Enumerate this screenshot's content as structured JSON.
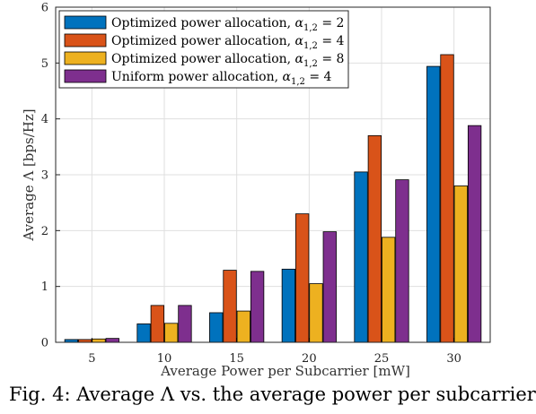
{
  "chart_data": {
    "type": "bar",
    "categories": [
      "5",
      "10",
      "15",
      "20",
      "25",
      "30"
    ],
    "series": [
      {
        "name": "Optimized power allocation, α1,2 = 2",
        "color": "#0072bd",
        "values": [
          0.05,
          0.33,
          0.53,
          1.31,
          3.05,
          4.94
        ]
      },
      {
        "name": "Optimized power allocation, α1,2 = 4",
        "color": "#d95319",
        "values": [
          0.05,
          0.66,
          1.29,
          2.3,
          3.7,
          5.15
        ]
      },
      {
        "name": "Optimized power allocation, α1,2 = 8",
        "color": "#edb120",
        "values": [
          0.06,
          0.34,
          0.56,
          1.05,
          1.88,
          2.8
        ]
      },
      {
        "name": "Uniform power allocation, α1,2 = 4",
        "color": "#7e2f8e",
        "values": [
          0.07,
          0.66,
          1.27,
          1.98,
          2.91,
          3.88
        ]
      }
    ],
    "title": "",
    "xlabel": "Average Power per Subcarrier [mW]",
    "ylabel": "Average Λ [bps/Hz]",
    "ylim": [
      0,
      6
    ],
    "yticks": [
      "0",
      "1",
      "2",
      "3",
      "4",
      "5",
      "6"
    ],
    "grid": true,
    "legend_position": "top-left"
  },
  "caption": "Fig. 4: Average Λ vs. the average power per subcarrier"
}
